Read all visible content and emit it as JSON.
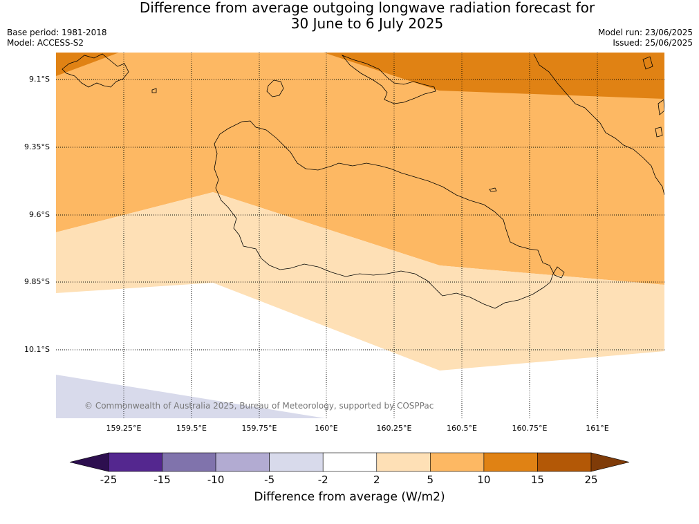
{
  "title_line1": "Difference from average outgoing longwave radiation forecast for",
  "title_line2": "30 June to 6 July 2025",
  "meta_left": [
    "Base period: 1981-2018",
    "Model: ACCESS-S2"
  ],
  "meta_right": [
    "Model run: 23/06/2025",
    "Issued: 25/06/2025"
  ],
  "credit": "© Commonwealth of Australia 2025, Bureau of Meteorology, supported by COSPPac",
  "lat_labels": [
    "9.1°S",
    "9.35°S",
    "9.6°S",
    "9.85°S",
    "10.1°S"
  ],
  "lon_labels": [
    "159.25°E",
    "159.5°E",
    "159.75°E",
    "160°E",
    "160.25°E",
    "160.5°E",
    "160.75°E",
    "161°E"
  ],
  "colorbar": {
    "label": "Difference from average (W/m2)",
    "ticks": [
      "-25",
      "-15",
      "-10",
      "-5",
      "-2",
      "2",
      "5",
      "10",
      "15",
      "25"
    ],
    "colors": [
      "#2d0f4f",
      "#54278f",
      "#8073ac",
      "#b2abd2",
      "#d8daeb",
      "#ffffff",
      "#fee0b6",
      "#fdb863",
      "#e08214",
      "#b35806",
      "#7f3b08"
    ]
  }
}
